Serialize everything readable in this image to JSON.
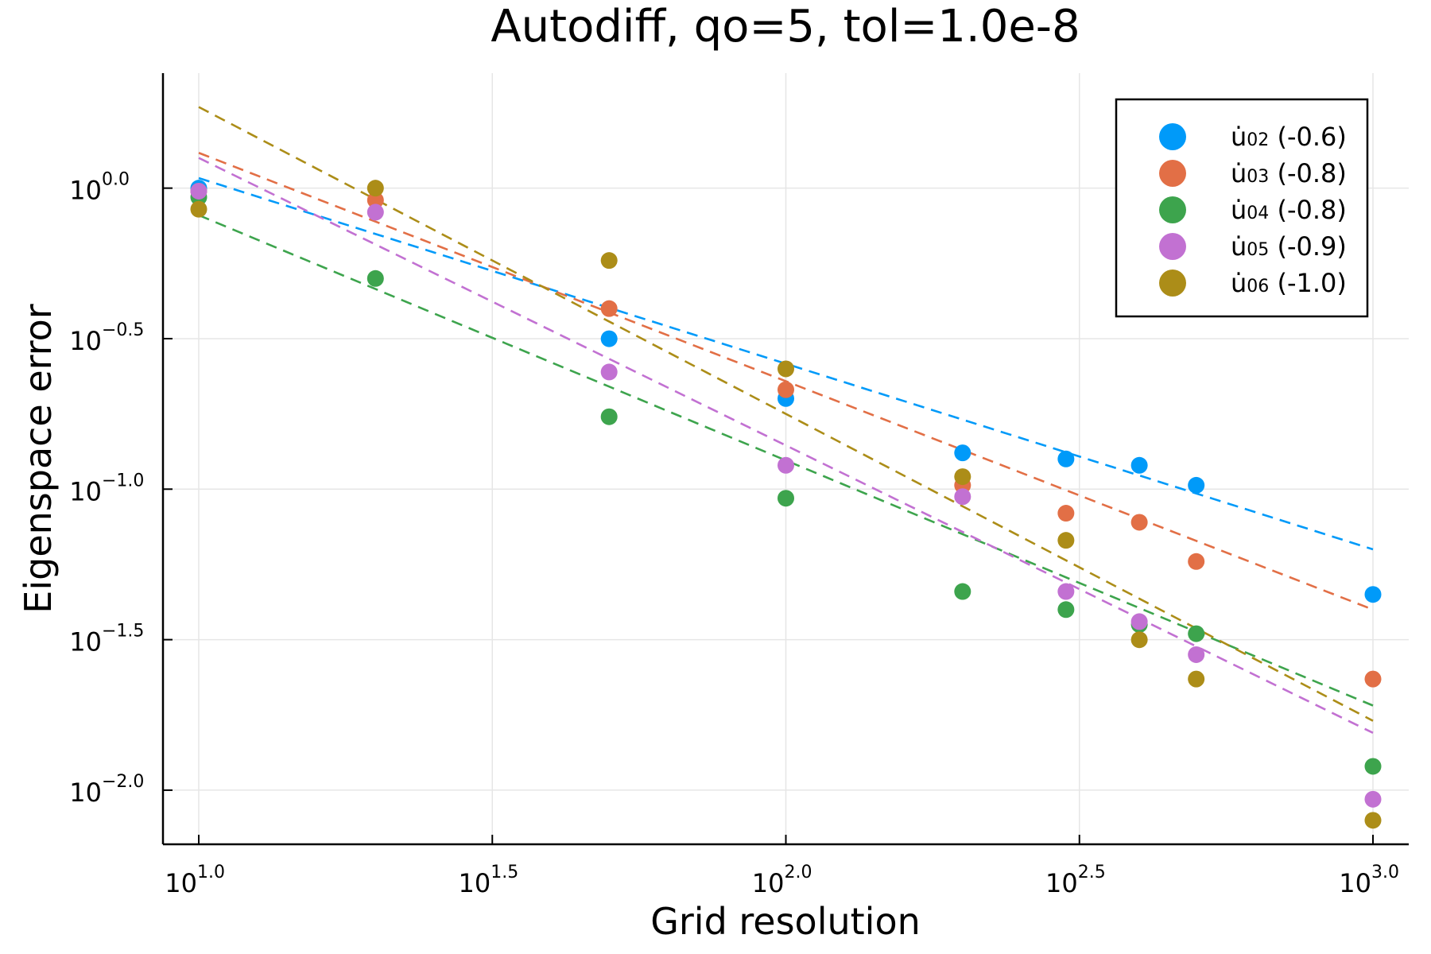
{
  "chart_data": {
    "type": "scatter",
    "title": "Autodiff, qo=5, tol=1.0e-8",
    "xlabel": "Grid resolution",
    "ylabel": "Eigenspace error",
    "xscale": "log10",
    "yscale": "log10",
    "xlim": [
      10,
      1000
    ],
    "ylim": [
      0.00661,
      2.41
    ],
    "x_ticks": [
      {
        "base": "10",
        "exp": "1.0"
      },
      {
        "base": "10",
        "exp": "1.5"
      },
      {
        "base": "10",
        "exp": "2.0"
      },
      {
        "base": "10",
        "exp": "2.5"
      },
      {
        "base": "10",
        "exp": "3.0"
      }
    ],
    "y_ticks": [
      {
        "base": "10",
        "exp": "0.0"
      },
      {
        "base": "10",
        "exp": "−0.5"
      },
      {
        "base": "10",
        "exp": "−1.0"
      },
      {
        "base": "10",
        "exp": "−1.5"
      },
      {
        "base": "10",
        "exp": "−2.0"
      }
    ],
    "grid": true,
    "legend_position": "top-right",
    "x": [
      10,
      20,
      50,
      100,
      200,
      300,
      400,
      500,
      1000
    ],
    "series": [
      {
        "name": "u̇02 (-0.6)",
        "label_parts": {
          "main": "u",
          "sub": "02",
          "rest": " (-0.6)"
        },
        "color": "#009af9",
        "y": [
          1.0,
          null,
          0.316,
          0.2,
          0.132,
          0.126,
          0.12,
          0.103,
          0.0447
        ],
        "fit": {
          "start": 1.08,
          "end": 0.0631
        }
      },
      {
        "name": "u̇03 (-0.8)",
        "label_parts": {
          "main": "u",
          "sub": "03",
          "rest": " (-0.8)"
        },
        "color": "#e26f46",
        "y": [
          0.977,
          0.912,
          0.398,
          0.214,
          0.103,
          0.0832,
          0.0776,
          0.0575,
          0.0234
        ],
        "fit": {
          "start": 1.31,
          "end": 0.0398
        }
      },
      {
        "name": "u̇04 (-0.8)",
        "label_parts": {
          "main": "u",
          "sub": "04",
          "rest": " (-0.8)"
        },
        "color": "#3da44d",
        "y": [
          0.933,
          0.501,
          0.174,
          0.0933,
          0.0457,
          0.0398,
          0.0355,
          0.0331,
          0.012
        ],
        "fit": {
          "start": 0.813,
          "end": 0.0191
        }
      },
      {
        "name": "u̇05 (-0.9)",
        "label_parts": {
          "main": "u",
          "sub": "05",
          "rest": " (-0.9)"
        },
        "color": "#c271d2",
        "y": [
          0.977,
          0.832,
          0.245,
          0.12,
          0.0944,
          0.0457,
          0.0363,
          0.0282,
          0.00933
        ],
        "fit": {
          "start": 1.26,
          "end": 0.0155
        }
      },
      {
        "name": "u̇06 (-1.0)",
        "label_parts": {
          "main": "u",
          "sub": "06",
          "rest": " (-1.0)"
        },
        "color": "#ac8d18",
        "y": [
          0.851,
          1.0,
          0.575,
          0.251,
          0.11,
          0.0676,
          0.0316,
          0.0234,
          0.00794
        ],
        "fit": {
          "start": 1.86,
          "end": 0.017
        }
      }
    ]
  }
}
